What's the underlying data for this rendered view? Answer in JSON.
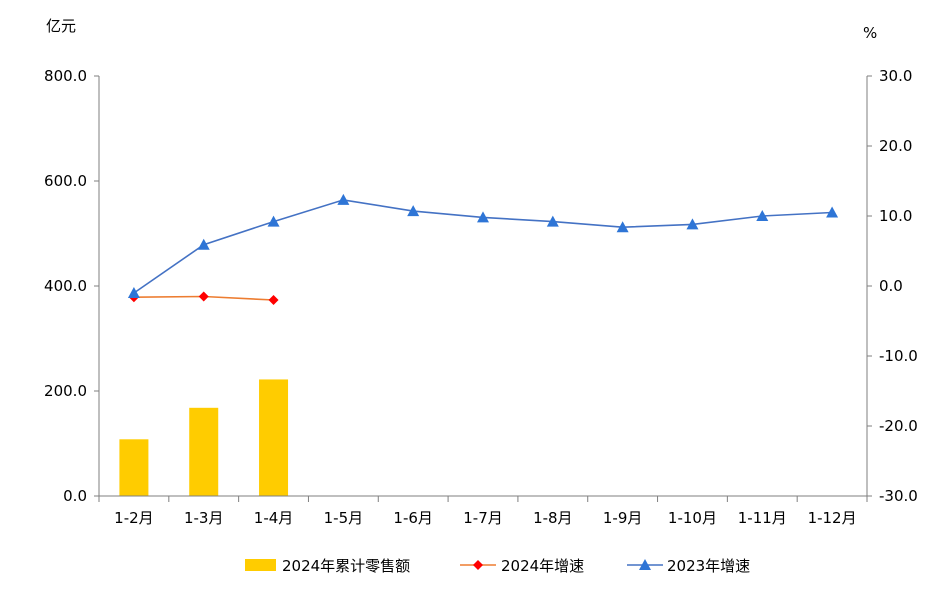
{
  "chart_data": {
    "type": "bar+line",
    "left_axis_unit": "亿元",
    "right_axis_unit": "%",
    "categories": [
      "1-2月",
      "1-3月",
      "1-4月",
      "1-5月",
      "1-6月",
      "1-7月",
      "1-8月",
      "1-9月",
      "1-10月",
      "1-11月",
      "1-12月"
    ],
    "ylim_left": [
      0,
      800
    ],
    "ylim_right": [
      -30,
      30
    ],
    "yticks_left": [
      "0.0",
      "200.0",
      "400.0",
      "600.0",
      "800.0"
    ],
    "yticks_right": [
      "-30.0",
      "-20.0",
      "-10.0",
      "0.0",
      "10.0",
      "20.0",
      "30.0"
    ],
    "grid": false,
    "legend_position": "bottom",
    "series": [
      {
        "name": "2024年累计零售额",
        "type": "bar",
        "axis": "left",
        "color": "#FFCC00",
        "values": [
          108,
          168,
          222,
          null,
          null,
          null,
          null,
          null,
          null,
          null,
          null
        ]
      },
      {
        "name": "2024年增速",
        "type": "line",
        "axis": "right",
        "color": "#FF0000",
        "line_color": "#ED7D31",
        "marker": "diamond",
        "values": [
          -1.6,
          -1.5,
          -2.0,
          null,
          null,
          null,
          null,
          null,
          null,
          null,
          null
        ]
      },
      {
        "name": "2023年增速",
        "type": "line",
        "axis": "right",
        "color": "#2E75D6",
        "line_color": "#4472C4",
        "marker": "triangle",
        "values": [
          -1.0,
          5.9,
          9.2,
          12.3,
          10.7,
          9.8,
          9.2,
          8.4,
          8.8,
          10.0,
          10.5
        ]
      }
    ]
  }
}
